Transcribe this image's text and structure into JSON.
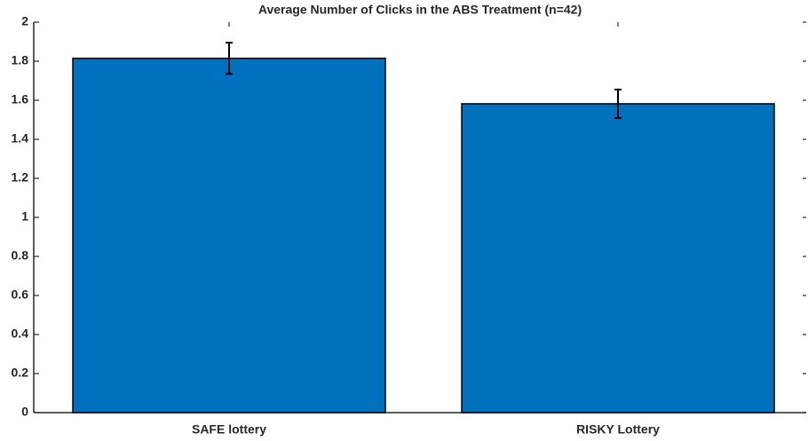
{
  "chart_data": {
    "type": "bar",
    "title": "Average Number of Clicks in the ABS Treatment (n=42)",
    "categories": [
      "SAFE lottery",
      "RISKY Lottery"
    ],
    "values": [
      1.815,
      1.582
    ],
    "errors": [
      0.08,
      0.073
    ],
    "color": "#0072bd",
    "ylim": [
      0,
      2
    ],
    "yticks": [
      0,
      0.2,
      0.4,
      0.6,
      0.8,
      1,
      1.2,
      1.4,
      1.6,
      1.8,
      2
    ],
    "grid": false
  }
}
